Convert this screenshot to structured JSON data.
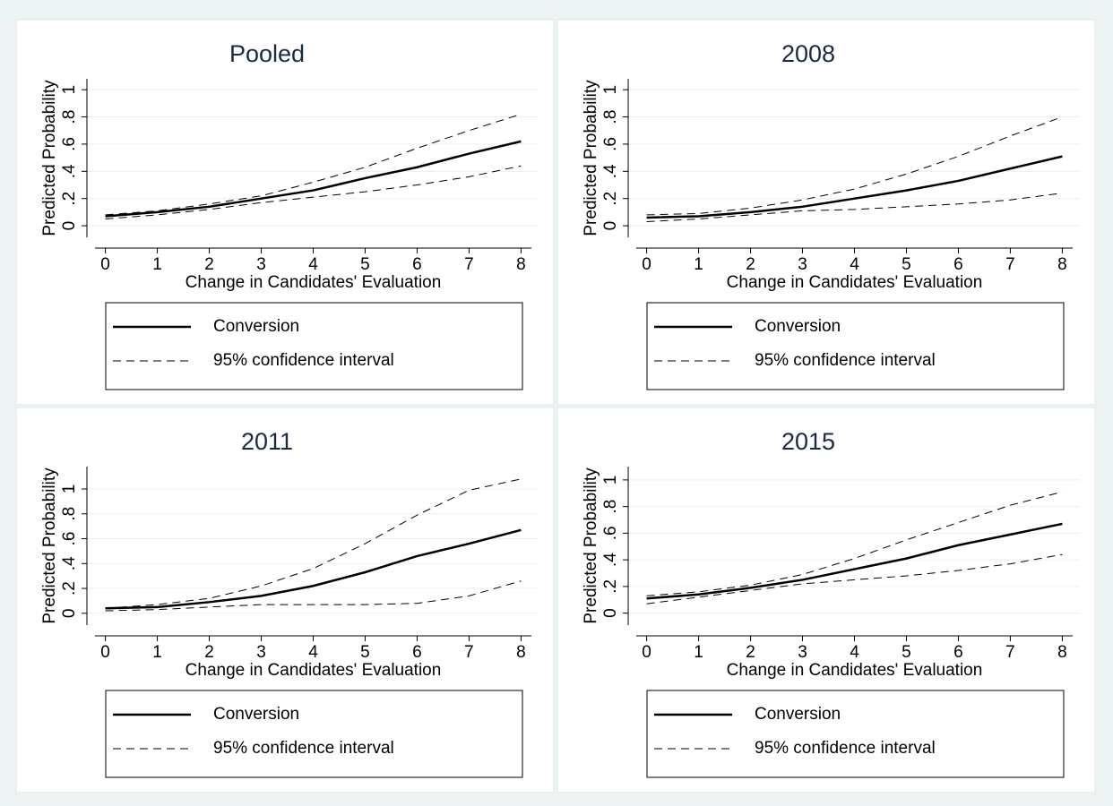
{
  "chart_data": [
    {
      "type": "line",
      "title": "Pooled",
      "x_label": "Change in Candidates' Evaluation",
      "y_label": "Predicted Probability",
      "x": [
        0,
        1,
        2,
        3,
        4,
        5,
        6,
        7,
        8
      ],
      "xlim": [
        -0.2,
        8.2
      ],
      "xticks": [
        0,
        1,
        2,
        3,
        4,
        5,
        6,
        7,
        8
      ],
      "ylim": [
        -0.085,
        1.08
      ],
      "yticks": [
        0,
        {
          "value": 0.2,
          "label": ".2"
        },
        {
          "value": 0.4,
          "label": ".4"
        },
        {
          "value": 0.6,
          "label": ".6"
        },
        {
          "value": 0.8,
          "label": ".8"
        },
        1
      ],
      "grid": true,
      "series": [
        {
          "name": "Conversion",
          "color": "#000000",
          "style": "solid",
          "values": [
            0.07,
            0.1,
            0.14,
            0.2,
            0.26,
            0.35,
            0.43,
            0.53,
            0.62
          ]
        },
        {
          "name": "95% confidence interval",
          "color": "#000000",
          "style": "dashed",
          "lower": [
            0.05,
            0.08,
            0.12,
            0.17,
            0.21,
            0.25,
            0.3,
            0.36,
            0.44
          ],
          "upper": [
            0.08,
            0.11,
            0.16,
            0.22,
            0.32,
            0.43,
            0.57,
            0.7,
            0.82
          ]
        }
      ]
    },
    {
      "type": "line",
      "title": "2008",
      "x_label": "Change in Candidates' Evaluation",
      "y_label": "Predicted Probability",
      "x": [
        0,
        1,
        2,
        3,
        4,
        5,
        6,
        7,
        8
      ],
      "xlim": [
        -0.2,
        8.2
      ],
      "xticks": [
        0,
        1,
        2,
        3,
        4,
        5,
        6,
        7,
        8
      ],
      "ylim": [
        -0.085,
        1.08
      ],
      "yticks": [
        0,
        {
          "value": 0.2,
          "label": ".2"
        },
        {
          "value": 0.4,
          "label": ".4"
        },
        {
          "value": 0.6,
          "label": ".6"
        },
        {
          "value": 0.8,
          "label": ".8"
        },
        1
      ],
      "grid": true,
      "series": [
        {
          "name": "Conversion",
          "color": "#000000",
          "style": "solid",
          "values": [
            0.06,
            0.07,
            0.1,
            0.14,
            0.2,
            0.26,
            0.33,
            0.42,
            0.51
          ]
        },
        {
          "name": "95% confidence interval",
          "color": "#000000",
          "style": "dashed",
          "lower": [
            0.03,
            0.05,
            0.08,
            0.11,
            0.12,
            0.14,
            0.16,
            0.19,
            0.24
          ],
          "upper": [
            0.08,
            0.09,
            0.13,
            0.19,
            0.27,
            0.38,
            0.51,
            0.66,
            0.8
          ]
        }
      ]
    },
    {
      "type": "line",
      "title": "2011",
      "x_label": "Change in Candidates' Evaluation",
      "y_label": "Predicted Probability",
      "x": [
        0,
        1,
        2,
        3,
        4,
        5,
        6,
        7,
        8
      ],
      "xlim": [
        -0.2,
        8.2
      ],
      "xticks": [
        0,
        1,
        2,
        3,
        4,
        5,
        6,
        7,
        8
      ],
      "ylim": [
        -0.095,
        1.18
      ],
      "yticks": [
        0,
        {
          "value": 0.2,
          "label": ".2"
        },
        {
          "value": 0.4,
          "label": ".4"
        },
        {
          "value": 0.6,
          "label": ".6"
        },
        {
          "value": 0.8,
          "label": ".8"
        },
        1
      ],
      "grid": true,
      "series": [
        {
          "name": "Conversion",
          "color": "#000000",
          "style": "solid",
          "values": [
            0.04,
            0.05,
            0.09,
            0.14,
            0.22,
            0.33,
            0.46,
            0.56,
            0.67
          ]
        },
        {
          "name": "95% confidence interval",
          "color": "#000000",
          "style": "dashed",
          "lower": [
            0.02,
            0.03,
            0.05,
            0.07,
            0.07,
            0.07,
            0.08,
            0.14,
            0.26
          ],
          "upper": [
            0.04,
            0.07,
            0.12,
            0.22,
            0.36,
            0.56,
            0.79,
            0.99,
            1.08
          ]
        }
      ]
    },
    {
      "type": "line",
      "title": "2015",
      "x_label": "Change in Candidates' Evaluation",
      "y_label": "Predicted Probability",
      "x": [
        0,
        1,
        2,
        3,
        4,
        5,
        6,
        7,
        8
      ],
      "xlim": [
        -0.2,
        8.2
      ],
      "xticks": [
        0,
        1,
        2,
        3,
        4,
        5,
        6,
        7,
        8
      ],
      "ylim": [
        -0.09,
        1.1
      ],
      "yticks": [
        0,
        {
          "value": 0.2,
          "label": ".2"
        },
        {
          "value": 0.4,
          "label": ".4"
        },
        {
          "value": 0.6,
          "label": ".6"
        },
        {
          "value": 0.8,
          "label": ".8"
        },
        1
      ],
      "grid": true,
      "series": [
        {
          "name": "Conversion",
          "color": "#000000",
          "style": "solid",
          "values": [
            0.11,
            0.14,
            0.19,
            0.25,
            0.33,
            0.41,
            0.51,
            0.59,
            0.67
          ]
        },
        {
          "name": "95% confidence interval",
          "color": "#000000",
          "style": "dashed",
          "lower": [
            0.07,
            0.12,
            0.17,
            0.22,
            0.25,
            0.28,
            0.32,
            0.37,
            0.44
          ],
          "upper": [
            0.13,
            0.16,
            0.21,
            0.29,
            0.41,
            0.55,
            0.68,
            0.81,
            0.91
          ]
        }
      ]
    }
  ]
}
